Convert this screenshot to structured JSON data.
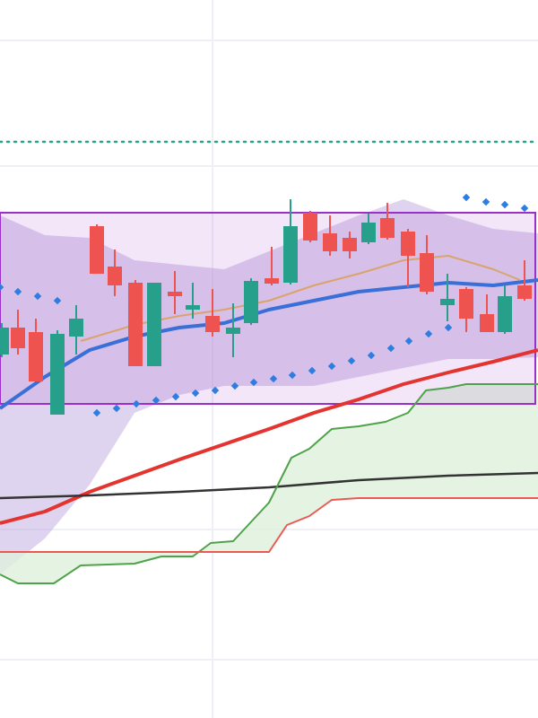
{
  "chart_data": {
    "type": "candlestick",
    "xlim": [
      0,
      600
    ],
    "ylim": [
      0,
      800
    ],
    "xticks": [
      237
    ],
    "yticks": [
      65,
      210,
      615,
      755
    ],
    "grid": true,
    "up_color": "#26a08a",
    "down_color": "#ef5350",
    "x": [
      2,
      20,
      40,
      64,
      85,
      108,
      128,
      151,
      172,
      195,
      215,
      237,
      260,
      280,
      303,
      324,
      346,
      368,
      390,
      411,
      432,
      455,
      476,
      499,
      520,
      543,
      563,
      585
    ],
    "open": [
      405,
      435,
      430,
      338,
      425,
      548,
      503,
      485,
      392,
      475,
      455,
      448,
      428,
      440,
      490,
      485,
      563,
      540,
      535,
      530,
      557,
      542,
      518,
      460,
      478,
      450,
      430,
      482
    ],
    "high": [
      440,
      455,
      445,
      432,
      460,
      550,
      522,
      488,
      485,
      498,
      485,
      478,
      462,
      490,
      525,
      578,
      565,
      560,
      542,
      562,
      574,
      545,
      538,
      495,
      480,
      472,
      482,
      510
    ],
    "low": [
      402,
      405,
      375,
      338,
      405,
      495,
      470,
      392,
      392,
      450,
      445,
      425,
      402,
      438,
      482,
      483,
      530,
      515,
      512,
      528,
      533,
      480,
      472,
      442,
      430,
      430,
      428,
      465
    ],
    "close": [
      435,
      412,
      375,
      428,
      445,
      495,
      482,
      392,
      485,
      470,
      460,
      430,
      435,
      487,
      484,
      548,
      532,
      520,
      520,
      552,
      535,
      515,
      475,
      467,
      445,
      430,
      470,
      467
    ],
    "band": {
      "color": "#b9a0dc",
      "x": [
        0,
        50,
        100,
        150,
        200,
        250,
        300,
        350,
        400,
        450,
        500,
        550,
        600
      ],
      "upper": [
        560,
        538,
        535,
        510,
        505,
        500,
        520,
        540,
        560,
        578,
        560,
        545,
        540
      ],
      "lower": [
        160,
        200,
        260,
        340,
        360,
        370,
        370,
        370,
        380,
        390,
        400,
        400,
        402
      ]
    },
    "cloud_color": "#dff0dc",
    "lines": [
      {
        "color": "#3a6fd8",
        "width": 4,
        "x": [
          0,
          50,
          100,
          150,
          200,
          250,
          300,
          350,
          400,
          450,
          500,
          550,
          600
        ],
        "values": [
          345,
          380,
          410,
          425,
          435,
          440,
          455,
          465,
          475,
          480,
          485,
          482,
          488
        ]
      },
      {
        "color": "#d9a46b",
        "width": 2,
        "x": [
          90,
          150,
          200,
          250,
          300,
          350,
          400,
          450,
          500,
          550,
          580
        ],
        "values": [
          420,
          438,
          448,
          455,
          465,
          482,
          495,
          510,
          515,
          500,
          488
        ]
      },
      {
        "color": "#e3342f",
        "width": 4,
        "x": [
          0,
          50,
          100,
          150,
          200,
          250,
          300,
          350,
          400,
          450,
          500,
          550,
          600
        ],
        "values": [
          217,
          230,
          252,
          270,
          288,
          305,
          322,
          340,
          355,
          372,
          385,
          397,
          410
        ]
      },
      {
        "color": "#333333",
        "width": 2.5,
        "x": [
          0,
          100,
          200,
          300,
          400,
          500,
          600
        ],
        "values": [
          245,
          248,
          252,
          257,
          265,
          270,
          273
        ]
      },
      {
        "color": "#4ea34a",
        "width": 2,
        "x": [
          0,
          20,
          60,
          90,
          150,
          180,
          215,
          235,
          260,
          300,
          325,
          345,
          370,
          400,
          430,
          455,
          475,
          500,
          520,
          600
        ],
        "values": [
          160,
          150,
          150,
          170,
          172,
          180,
          180,
          195,
          197,
          240,
          290,
          300,
          322,
          325,
          330,
          340,
          365,
          368,
          372,
          372
        ]
      },
      {
        "color": "#ea5a52",
        "width": 2,
        "x": [
          0,
          100,
          200,
          300,
          320,
          345,
          370,
          400,
          600
        ],
        "values": [
          185,
          185,
          185,
          185,
          215,
          225,
          243,
          245,
          245
        ]
      }
    ],
    "dots": {
      "color": "#2f7de1",
      "x": [
        0,
        20,
        42,
        64,
        108,
        130,
        152,
        174,
        196,
        218,
        240,
        262,
        283,
        305,
        326,
        348,
        370,
        392,
        414,
        436,
        456,
        478,
        500,
        520,
        542,
        563,
        585
      ],
      "values": [
        480,
        475,
        470,
        465,
        340,
        345,
        350,
        354,
        358,
        362,
        365,
        370,
        374,
        378,
        382,
        387,
        392,
        398,
        404,
        412,
        420,
        428,
        435,
        580,
        575,
        572,
        568
      ]
    },
    "box": {
      "color": "#9b30c8",
      "x": [
        0,
        597
      ],
      "values": [
        563,
        350
      ]
    },
    "hline": {
      "color": "#2aa38a",
      "value": 642
    }
  }
}
